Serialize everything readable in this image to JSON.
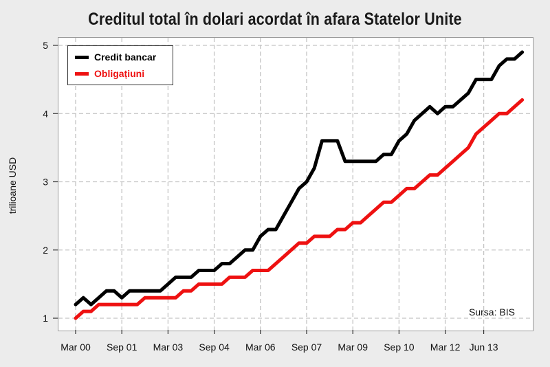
{
  "chart_data": {
    "type": "line",
    "title": "Creditul total în dolari acordat în afara Statelor Unite",
    "ylabel": "trilioane USD",
    "xlabel": "",
    "ylim": [
      1,
      5
    ],
    "yticks": [
      1,
      2,
      3,
      4,
      5
    ],
    "grid": true,
    "legend_position": "top-left",
    "xtick_labels": [
      "Mar 00",
      "Sep 01",
      "Mar 03",
      "Sep 04",
      "Mar 06",
      "Sep 07",
      "Mar 09",
      "Sep 10",
      "Mar 12",
      "Jun 13"
    ],
    "x_start": "2000-03",
    "x_step_months": 3,
    "series": [
      {
        "name": "Credit bancar",
        "color": "#000000",
        "values": [
          1.2,
          1.3,
          1.2,
          1.3,
          1.4,
          1.4,
          1.3,
          1.4,
          1.4,
          1.4,
          1.4,
          1.4,
          1.5,
          1.6,
          1.6,
          1.6,
          1.7,
          1.7,
          1.7,
          1.8,
          1.8,
          1.9,
          2.0,
          2.0,
          2.2,
          2.3,
          2.3,
          2.5,
          2.7,
          2.9,
          3.0,
          3.2,
          3.6,
          3.6,
          3.6,
          3.3,
          3.3,
          3.3,
          3.3,
          3.3,
          3.4,
          3.4,
          3.6,
          3.7,
          3.9,
          4.0,
          4.1,
          4.0,
          4.1,
          4.1,
          4.2,
          4.3,
          4.5,
          4.5,
          4.5,
          4.7,
          4.8,
          4.8,
          4.9
        ]
      },
      {
        "name": "Obligațiuni",
        "color": "#ee1111",
        "values": [
          1.0,
          1.1,
          1.1,
          1.2,
          1.2,
          1.2,
          1.2,
          1.2,
          1.2,
          1.3,
          1.3,
          1.3,
          1.3,
          1.3,
          1.4,
          1.4,
          1.5,
          1.5,
          1.5,
          1.5,
          1.6,
          1.6,
          1.6,
          1.7,
          1.7,
          1.7,
          1.8,
          1.9,
          2.0,
          2.1,
          2.1,
          2.2,
          2.2,
          2.2,
          2.3,
          2.3,
          2.4,
          2.4,
          2.5,
          2.6,
          2.7,
          2.7,
          2.8,
          2.9,
          2.9,
          3.0,
          3.1,
          3.1,
          3.2,
          3.3,
          3.4,
          3.5,
          3.7,
          3.8,
          3.9,
          4.0,
          4.0,
          4.1,
          4.2
        ]
      }
    ],
    "annotation": "Sursa: BIS"
  }
}
